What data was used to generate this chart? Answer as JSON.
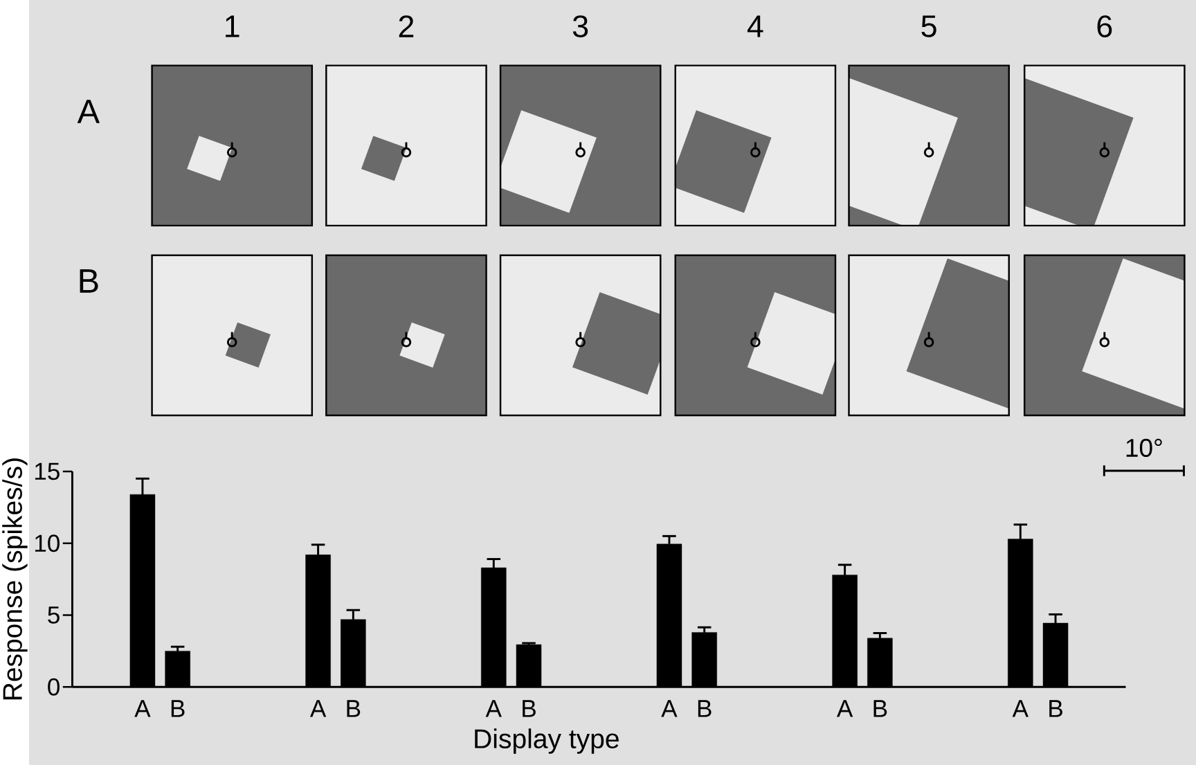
{
  "chart_data": {
    "type": "bar",
    "categories": [
      "A",
      "B",
      "A",
      "B",
      "A",
      "B",
      "A",
      "B",
      "A",
      "B",
      "A",
      "B"
    ],
    "values": [
      13.4,
      2.5,
      9.2,
      4.7,
      8.3,
      2.95,
      9.95,
      3.8,
      7.8,
      3.4,
      10.3,
      4.45
    ],
    "errors": [
      1.1,
      0.3,
      0.7,
      0.65,
      0.6,
      0.1,
      0.55,
      0.35,
      0.7,
      0.35,
      1.0,
      0.6
    ],
    "color": "#000000",
    "ylim": [
      0,
      15
    ],
    "yticks": [
      0,
      5,
      10,
      15
    ],
    "xlabel": "Display type",
    "ylabel": "Response (spikes/s)",
    "annotations": [
      "1",
      "2",
      "3",
      "4",
      "5",
      "6",
      "A",
      "B",
      "10°"
    ]
  }
}
